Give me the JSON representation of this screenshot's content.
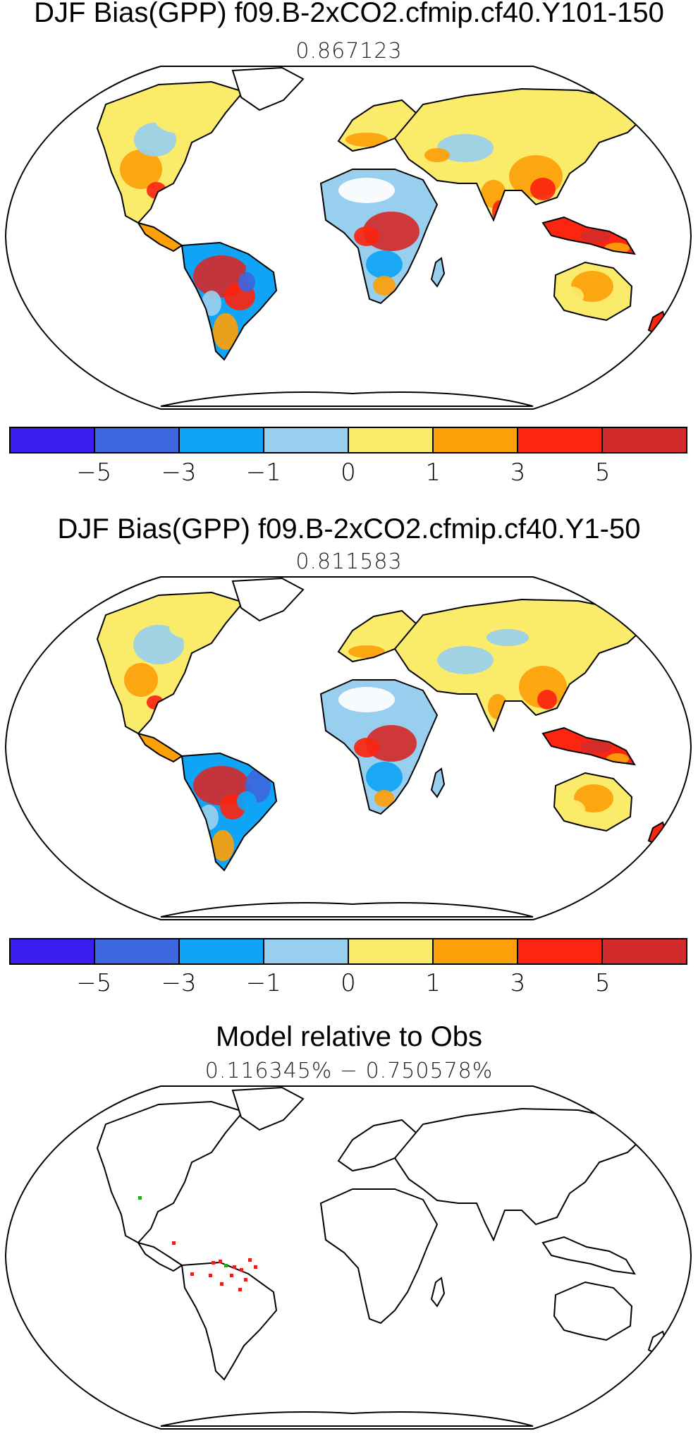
{
  "panels": [
    {
      "title": "DJF Bias(GPP) f09.B-2xCO2.cfmip.cf40.Y101-150",
      "subtitle": "0.867123"
    },
    {
      "title": "DJF Bias(GPP) f09.B-2xCO2.cfmip.cf40.Y1-50",
      "subtitle": "0.811583"
    },
    {
      "title": "Model relative to Obs",
      "subtitle": "0.116345% − 0.750578%"
    }
  ],
  "colorbar": {
    "colors": [
      "#3a1ef0",
      "#3c67de",
      "#0fa4f5",
      "#99cfee",
      "#fbeb6a",
      "#fca00a",
      "#fb2510",
      "#d22b2b"
    ],
    "labels": [
      "−5",
      "−3",
      "−1",
      "0",
      "1",
      "3",
      "5"
    ]
  }
}
